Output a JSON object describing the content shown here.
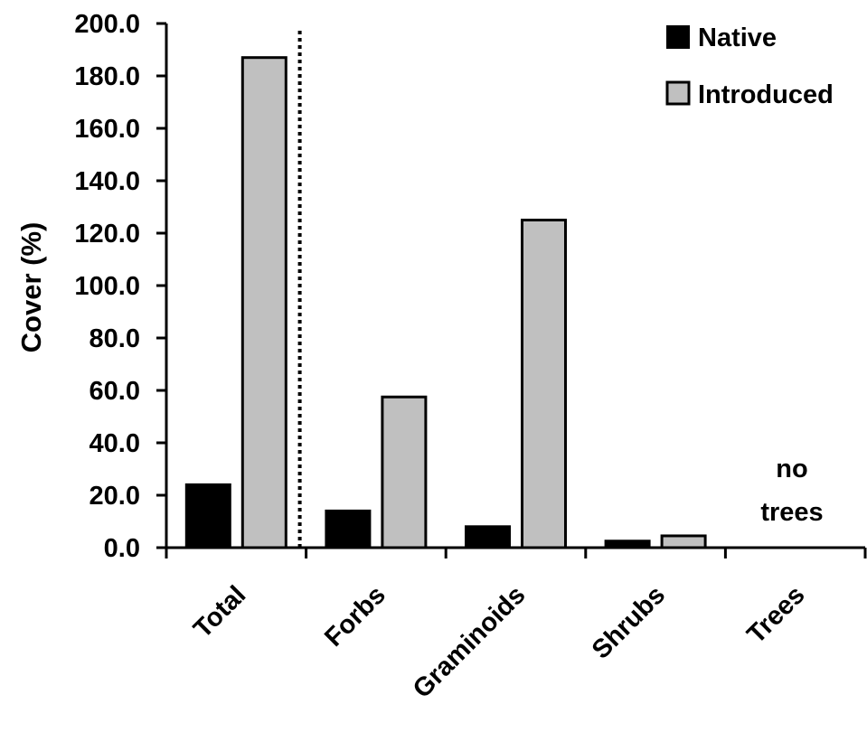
{
  "chart_data": {
    "type": "bar",
    "title": "",
    "xlabel": "",
    "ylabel": "Cover (%)",
    "ylim": [
      0,
      200
    ],
    "yticks": [
      "0.0",
      "20.0",
      "40.0",
      "60.0",
      "80.0",
      "100.0",
      "120.0",
      "140.0",
      "160.0",
      "180.0",
      "200.0"
    ],
    "categories": [
      "Total",
      "Forbs",
      "Graminoids",
      "Shrubs",
      "Trees"
    ],
    "series": [
      {
        "name": "Native",
        "color": "#000000",
        "values": [
          24,
          14,
          8,
          2.5,
          0
        ]
      },
      {
        "name": "Introduced",
        "color": "#c0c0c0",
        "values": [
          187,
          57.5,
          125,
          4.5,
          0
        ]
      }
    ],
    "legend_position": "top-right",
    "grid": false,
    "annotation": {
      "line1": "no",
      "line2": "trees",
      "category": "Trees"
    },
    "separator": {
      "style": "dotted",
      "after_category": "Total"
    }
  }
}
